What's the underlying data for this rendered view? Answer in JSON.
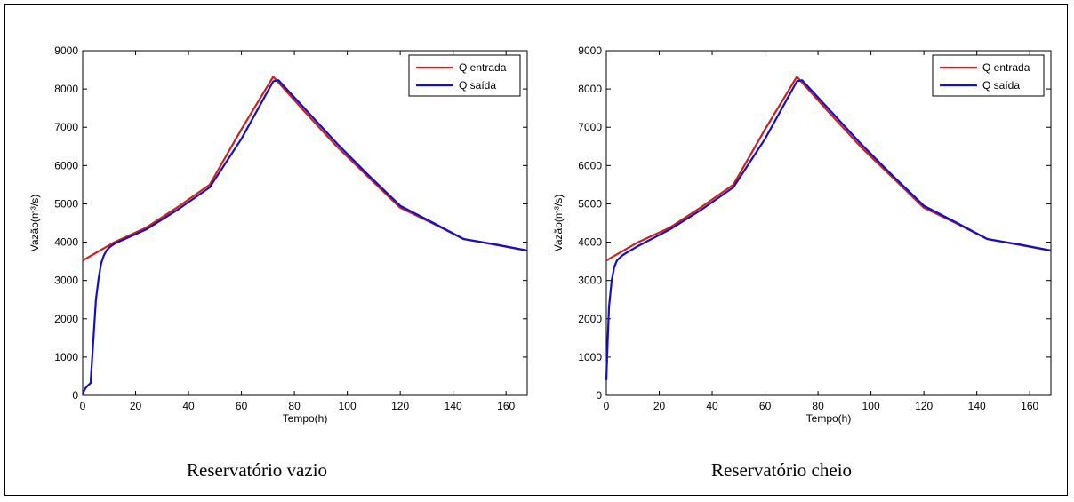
{
  "colors": {
    "inflow": "#d11f1f",
    "outflow": "#1010c8",
    "axis": "#000000"
  },
  "chart_data": [
    {
      "type": "line",
      "caption": "Reservatório vazio",
      "xlabel": "Tempo(h)",
      "ylabel": "Vazão(m³/s)",
      "xlim": [
        0,
        168
      ],
      "ylim": [
        0,
        9000
      ],
      "xticks": [
        0,
        20,
        40,
        60,
        80,
        100,
        120,
        140,
        160
      ],
      "yticks": [
        0,
        1000,
        2000,
        3000,
        4000,
        5000,
        6000,
        7000,
        8000,
        9000
      ],
      "legend_position": "top-right",
      "series": [
        {
          "name": "Q entrada",
          "color_key": "inflow",
          "points": [
            [
              0,
              3520
            ],
            [
              12,
              4000
            ],
            [
              24,
              4380
            ],
            [
              36,
              4920
            ],
            [
              48,
              5500
            ],
            [
              60,
              6950
            ],
            [
              72,
              8320
            ],
            [
              84,
              7400
            ],
            [
              96,
              6500
            ],
            [
              108,
              5700
            ],
            [
              120,
              4900
            ],
            [
              132,
              4500
            ],
            [
              144,
              4080
            ],
            [
              156,
              3930
            ],
            [
              168,
              3780
            ]
          ]
        },
        {
          "name": "Q saída",
          "color_key": "outflow",
          "points": [
            [
              0,
              50
            ],
            [
              1,
              180
            ],
            [
              2,
              260
            ],
            [
              3,
              320
            ],
            [
              4,
              1400
            ],
            [
              5,
              2500
            ],
            [
              6,
              3050
            ],
            [
              7,
              3450
            ],
            [
              8,
              3650
            ],
            [
              9,
              3780
            ],
            [
              10,
              3860
            ],
            [
              12,
              3960
            ],
            [
              24,
              4330
            ],
            [
              36,
              4850
            ],
            [
              48,
              5430
            ],
            [
              60,
              6700
            ],
            [
              72,
              8200
            ],
            [
              74,
              8230
            ],
            [
              84,
              7480
            ],
            [
              96,
              6580
            ],
            [
              108,
              5750
            ],
            [
              120,
              4950
            ],
            [
              132,
              4520
            ],
            [
              144,
              4080
            ],
            [
              156,
              3940
            ],
            [
              168,
              3780
            ]
          ]
        }
      ]
    },
    {
      "type": "line",
      "caption": "Reservatório cheio",
      "xlabel": "Tempo(h)",
      "ylabel": "Vazão(m³/s)",
      "xlim": [
        0,
        168
      ],
      "ylim": [
        0,
        9000
      ],
      "xticks": [
        0,
        20,
        40,
        60,
        80,
        100,
        120,
        140,
        160
      ],
      "yticks": [
        0,
        1000,
        2000,
        3000,
        4000,
        5000,
        6000,
        7000,
        8000,
        9000
      ],
      "legend_position": "top-right",
      "series": [
        {
          "name": "Q entrada",
          "color_key": "inflow",
          "points": [
            [
              0,
              3520
            ],
            [
              12,
              4000
            ],
            [
              24,
              4380
            ],
            [
              36,
              4920
            ],
            [
              48,
              5500
            ],
            [
              60,
              6950
            ],
            [
              72,
              8320
            ],
            [
              84,
              7400
            ],
            [
              96,
              6500
            ],
            [
              108,
              5700
            ],
            [
              120,
              4900
            ],
            [
              132,
              4500
            ],
            [
              144,
              4080
            ],
            [
              156,
              3930
            ],
            [
              168,
              3780
            ]
          ]
        },
        {
          "name": "Q saída",
          "color_key": "outflow",
          "points": [
            [
              0,
              400
            ],
            [
              0.5,
              1400
            ],
            [
              1,
              2300
            ],
            [
              2,
              3000
            ],
            [
              3,
              3350
            ],
            [
              4,
              3520
            ],
            [
              6,
              3650
            ],
            [
              8,
              3740
            ],
            [
              12,
              3900
            ],
            [
              24,
              4330
            ],
            [
              36,
              4850
            ],
            [
              48,
              5430
            ],
            [
              60,
              6700
            ],
            [
              72,
              8200
            ],
            [
              74,
              8230
            ],
            [
              84,
              7480
            ],
            [
              96,
              6580
            ],
            [
              108,
              5750
            ],
            [
              120,
              4950
            ],
            [
              132,
              4520
            ],
            [
              144,
              4080
            ],
            [
              156,
              3940
            ],
            [
              168,
              3780
            ]
          ]
        }
      ]
    }
  ]
}
